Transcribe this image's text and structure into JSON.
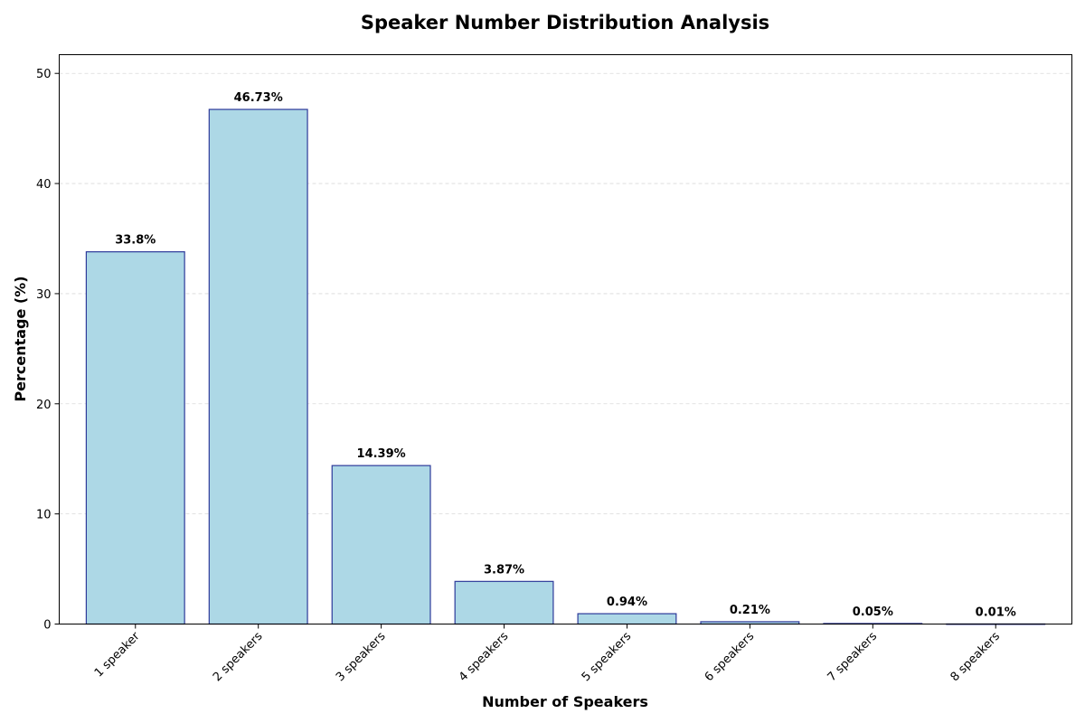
{
  "chart_data": {
    "type": "bar",
    "title": "Speaker Number Distribution Analysis",
    "xlabel": "Number of Speakers",
    "ylabel": "Percentage (%)",
    "categories": [
      "1 speaker",
      "2 speakers",
      "3 speakers",
      "4 speakers",
      "5 speakers",
      "6 speakers",
      "7 speakers",
      "8 speakers"
    ],
    "values": [
      33.8,
      46.73,
      14.39,
      3.87,
      0.94,
      0.21,
      0.05,
      0.01
    ],
    "value_labels": [
      "33.8%",
      "46.73%",
      "14.39%",
      "3.87%",
      "0.94%",
      "0.21%",
      "0.05%",
      "0.01%"
    ],
    "ylim": [
      0,
      51.7
    ],
    "yticks": [
      0,
      10,
      20,
      30,
      40,
      50
    ],
    "grid": true,
    "bar_color": "#add8e6",
    "bar_edge_color": "#2e3a9a"
  }
}
